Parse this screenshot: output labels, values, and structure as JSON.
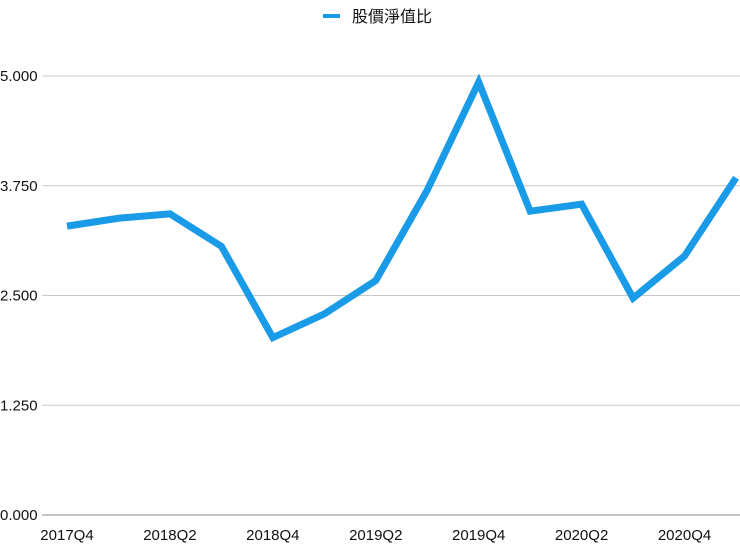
{
  "chart_data": {
    "type": "line",
    "title": "",
    "xlabel": "",
    "ylabel": "",
    "legend_position": "top",
    "grid": true,
    "ylim": [
      0,
      5
    ],
    "yticks": [
      "0.000",
      "1.250",
      "2.500",
      "3.750",
      "5.000"
    ],
    "ytick_values": [
      0,
      1.25,
      2.5,
      3.75,
      5
    ],
    "categories": [
      "2017Q4",
      "2018Q1",
      "2018Q2",
      "2018Q3",
      "2018Q4",
      "2019Q1",
      "2019Q2",
      "2019Q3",
      "2019Q4",
      "2020Q1",
      "2020Q2",
      "2020Q3",
      "2020Q4",
      "2021Q1"
    ],
    "xtick_labels": [
      "2017Q4",
      "2018Q2",
      "2018Q4",
      "2019Q2",
      "2019Q4",
      "2020Q2",
      "2020Q4"
    ],
    "series": [
      {
        "name": "股價淨值比",
        "color": "#1a9be8",
        "values": [
          3.29,
          3.38,
          3.43,
          3.06,
          2.02,
          2.29,
          2.67,
          3.7,
          4.93,
          3.46,
          3.54,
          2.47,
          2.95,
          3.84
        ]
      }
    ]
  }
}
